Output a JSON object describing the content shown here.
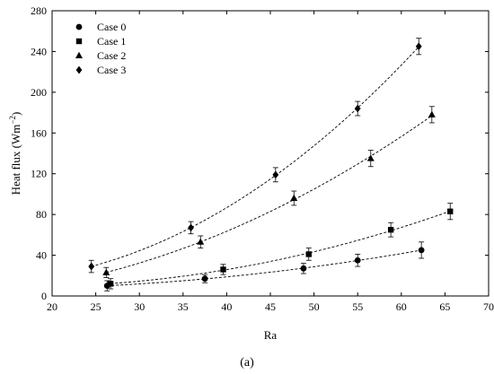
{
  "chart_data": {
    "type": "scatter",
    "xlabel": "Ra",
    "ylabel": {
      "base": "Heat flux (Wm",
      "sup": "−2",
      "close": ")"
    },
    "xlim": [
      20,
      70
    ],
    "ylim": [
      0,
      280
    ],
    "xticks": [
      20,
      25,
      30,
      35,
      40,
      45,
      50,
      55,
      60,
      65,
      70
    ],
    "yticks": [
      0,
      40,
      80,
      120,
      160,
      200,
      240,
      280
    ],
    "grid": false,
    "legend_position": "top-left",
    "caption": "(a)",
    "series": [
      {
        "name": "Case 0",
        "marker": "circle",
        "x": [
          26.3,
          37.5,
          48.8,
          55.0,
          62.3
        ],
        "y": [
          10,
          17,
          27,
          35,
          45
        ],
        "err": [
          5,
          4,
          5,
          6,
          8
        ]
      },
      {
        "name": "Case 1",
        "marker": "square",
        "x": [
          26.7,
          39.6,
          49.4,
          58.8,
          65.6
        ],
        "y": [
          12,
          26,
          41,
          65,
          83
        ],
        "err": [
          5,
          5,
          6,
          7,
          8
        ]
      },
      {
        "name": "Case 2",
        "marker": "triangle",
        "x": [
          26.2,
          37.0,
          47.7,
          56.5,
          63.5
        ],
        "y": [
          23,
          53,
          96,
          135,
          178
        ],
        "err": [
          5,
          6,
          7,
          8,
          8
        ]
      },
      {
        "name": "Case 3",
        "marker": "diamond",
        "x": [
          24.5,
          35.9,
          45.6,
          55.0,
          62.0
        ],
        "y": [
          29,
          67,
          119,
          184,
          245
        ],
        "err": [
          6,
          6,
          7,
          7,
          8
        ]
      }
    ]
  }
}
